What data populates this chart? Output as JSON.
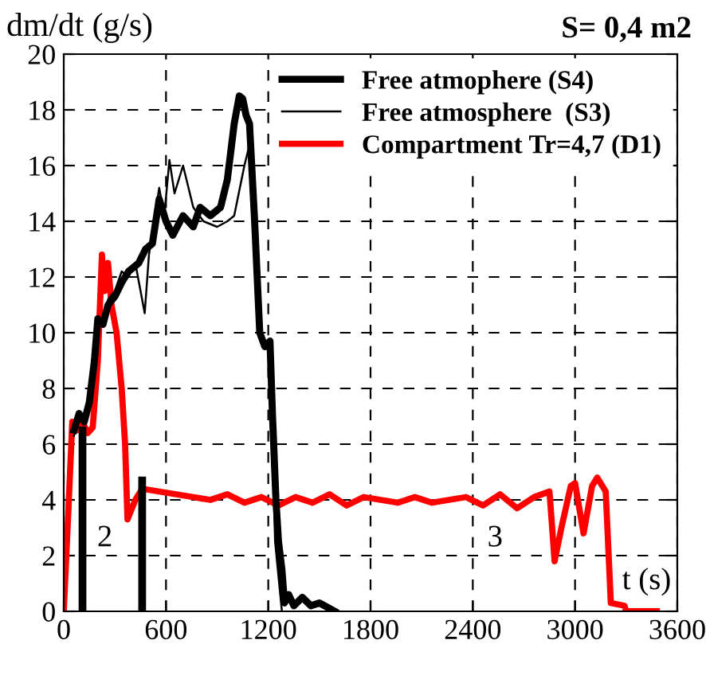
{
  "chart_data": {
    "type": "line",
    "title": "S= 0,4 m2",
    "ylabel": "dm/dt (g/s)",
    "xlabel": "t (s)",
    "xlim": [
      0,
      3600
    ],
    "ylim": [
      0,
      20
    ],
    "xticks": [
      0,
      600,
      1200,
      1800,
      2400,
      3000,
      3600
    ],
    "yticks": [
      0,
      2,
      4,
      6,
      8,
      10,
      12,
      14,
      16,
      18,
      20
    ],
    "grid": true,
    "legend": "top right",
    "marker": "none",
    "line_style": "solid",
    "annotations": [
      "2",
      "3"
    ],
    "series": [
      {
        "name": "Free atmophere (S4)",
        "color": "#000000",
        "x": [
          60,
          90,
          120,
          150,
          180,
          200,
          230,
          260,
          300,
          340,
          380,
          440,
          480,
          520,
          560,
          600,
          640,
          700,
          760,
          800,
          860,
          920,
          960,
          1000,
          1030,
          1050,
          1070,
          1090,
          1120,
          1150,
          1180,
          1210,
          1225,
          1245,
          1260,
          1280,
          1295,
          1320,
          1350,
          1400,
          1450,
          1500,
          1590
        ],
        "values": [
          6.5,
          7.1,
          6.8,
          7.5,
          9,
          10.5,
          10.3,
          11,
          11.3,
          11.8,
          12.2,
          12.5,
          13,
          13.2,
          14.8,
          14,
          13.5,
          14.2,
          13.8,
          14.5,
          14.2,
          14.5,
          15.5,
          17.5,
          18.5,
          18.4,
          17.8,
          17.5,
          14,
          10,
          9.5,
          9.7,
          7,
          4,
          2.5,
          1.5,
          0.3,
          0.6,
          0.2,
          0.5,
          0.2,
          0.3,
          0
        ]
      },
      {
        "name": "Free atmosphere  (S3)",
        "color": "#000000",
        "x": [
          60,
          90,
          120,
          150,
          180,
          200,
          230,
          260,
          300,
          340,
          380,
          420,
          475,
          500,
          560,
          590,
          620,
          650,
          700,
          760,
          820,
          900,
          960,
          1000,
          1060,
          1100,
          1120,
          1150,
          1180,
          1210,
          1240,
          1280
        ],
        "values": [
          6.3,
          7,
          6.7,
          7.4,
          9.2,
          10.2,
          10.5,
          11.2,
          11.5,
          12.2,
          12,
          12.5,
          10.7,
          12.8,
          15.2,
          14.2,
          16.2,
          15,
          16,
          14.5,
          14,
          13.8,
          14,
          14.2,
          16,
          17,
          13,
          10,
          9.5,
          9.6,
          2.5,
          0
        ]
      },
      {
        "name": "Compartment Tr=4,7 (D1)",
        "color": "#ff0000",
        "x": [
          0,
          30,
          50,
          80,
          110,
          140,
          170,
          200,
          224,
          240,
          260,
          280,
          310,
          340,
          360,
          374,
          420,
          460,
          560,
          660,
          760,
          860,
          960,
          1060,
          1160,
          1260,
          1360,
          1460,
          1560,
          1660,
          1760,
          1860,
          1960,
          2060,
          2160,
          2260,
          2360,
          2460,
          2560,
          2660,
          2760,
          2850,
          2880,
          2920,
          2975,
          3000,
          3050,
          3100,
          3130,
          3180,
          3210,
          3290,
          3300,
          3480
        ],
        "values": [
          0,
          4,
          6.8,
          6.5,
          6.8,
          6.4,
          6.6,
          9,
          12.8,
          11.5,
          12.5,
          11,
          10,
          8,
          6,
          3.3,
          4,
          4.4,
          4.3,
          4.2,
          4.1,
          4,
          4.2,
          3.9,
          4.1,
          3.8,
          4.1,
          3.9,
          4.2,
          3.8,
          4.1,
          4,
          3.9,
          4.1,
          3.9,
          4,
          4.1,
          3.8,
          4.2,
          3.7,
          4.1,
          4.3,
          1.8,
          3,
          4.5,
          4.6,
          2.8,
          4.5,
          4.8,
          4.3,
          0.3,
          0.2,
          0,
          0
        ]
      },
      {
        "color": "#000000",
        "x": [
          110,
          110
        ],
        "values": [
          0,
          6.5
        ]
      },
      {
        "color": "#000000",
        "x": [
          460,
          460
        ],
        "values": [
          0,
          4.7
        ]
      }
    ]
  }
}
